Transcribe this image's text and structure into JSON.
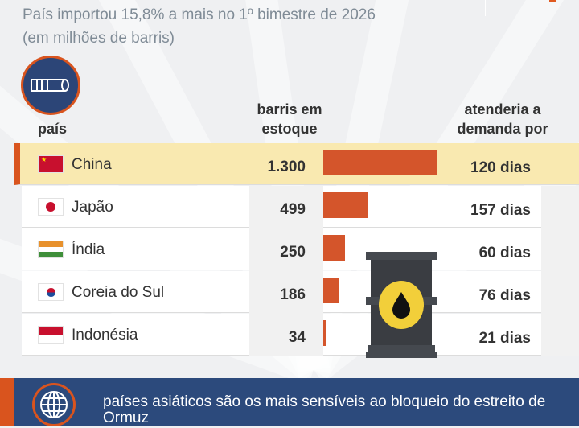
{
  "subtitle": "País importou 15,8% a mais no 1º bimestre de 2026",
  "unit": "(em milhões de barris)",
  "headers": {
    "country": "país",
    "stock": "barris em estoque",
    "days": "atenderia a demanda por"
  },
  "chart_data": {
    "type": "bar",
    "title": "País importou 15,8% a mais no 1º bimestre de 2026",
    "ylabel": "barris em estoque (em milhões de barris)",
    "categories": [
      "China",
      "Japão",
      "Índia",
      "Coreia do Sul",
      "Indonésia"
    ],
    "values": [
      1300,
      499,
      250,
      186,
      34
    ],
    "value_labels": [
      "1.300",
      "499",
      "250",
      "186",
      "34"
    ],
    "days": [
      "120 dias",
      "157 dias",
      "60 dias",
      "76 dias",
      "21 dias"
    ],
    "highlight": "China",
    "bar_color": "#d4552b"
  },
  "footer": {
    "text": "países asiáticos são os mais sensíveis ao bloqueio do estreito de Ormuz"
  }
}
